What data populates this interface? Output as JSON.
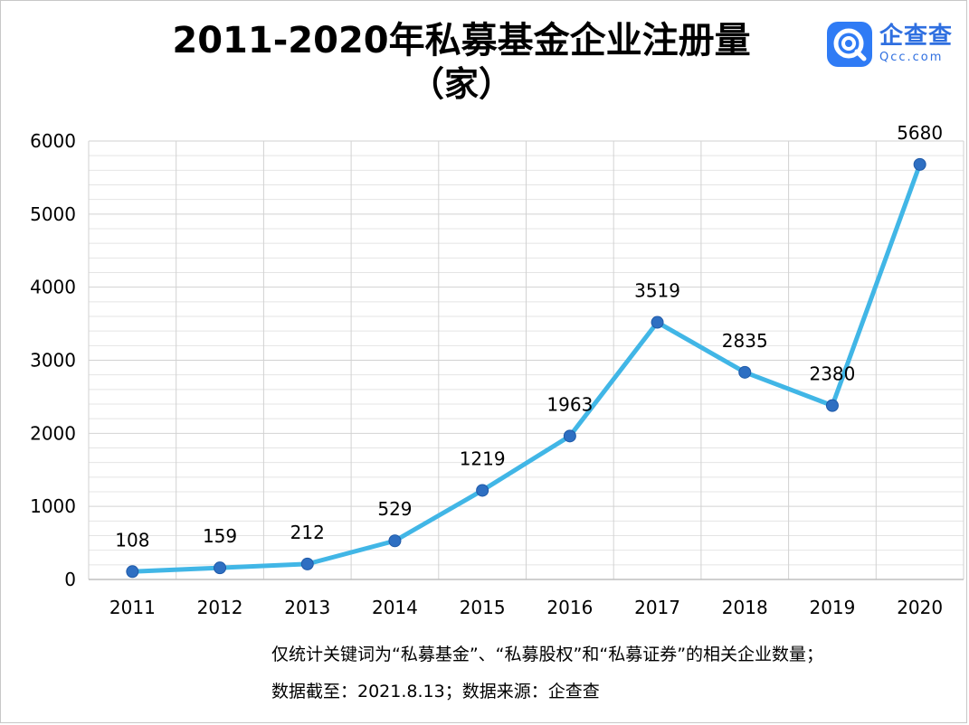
{
  "header": {
    "title": "2011-2020年私募基金企业注册量",
    "subtitle": "（家）"
  },
  "logo": {
    "name": "企查查",
    "sub": "Qcc.com",
    "icon": "qcc-logo-icon",
    "color": "#2f7bf5"
  },
  "notes": {
    "line1": "仅统计关键词为“私募基金”、“私募股权”和“私募证券”的相关企业数量；",
    "line2": "数据截至：2021.8.13；数据来源：企查查"
  },
  "chart_data": {
    "type": "line",
    "title": "2011-2020年私募基金企业注册量",
    "ylabel": "（家）",
    "xlabel": "",
    "ylim": [
      0,
      6000
    ],
    "yticks": [
      0,
      1000,
      2000,
      3000,
      4000,
      5000,
      6000
    ],
    "grid": true,
    "categories": [
      "2011",
      "2012",
      "2013",
      "2014",
      "2015",
      "2016",
      "2017",
      "2018",
      "2019",
      "2020"
    ],
    "values": [
      108,
      159,
      212,
      529,
      1219,
      1963,
      3519,
      2835,
      2380,
      5680
    ],
    "line_color": "#41b6e6",
    "marker_color": "#2e6fc2"
  }
}
